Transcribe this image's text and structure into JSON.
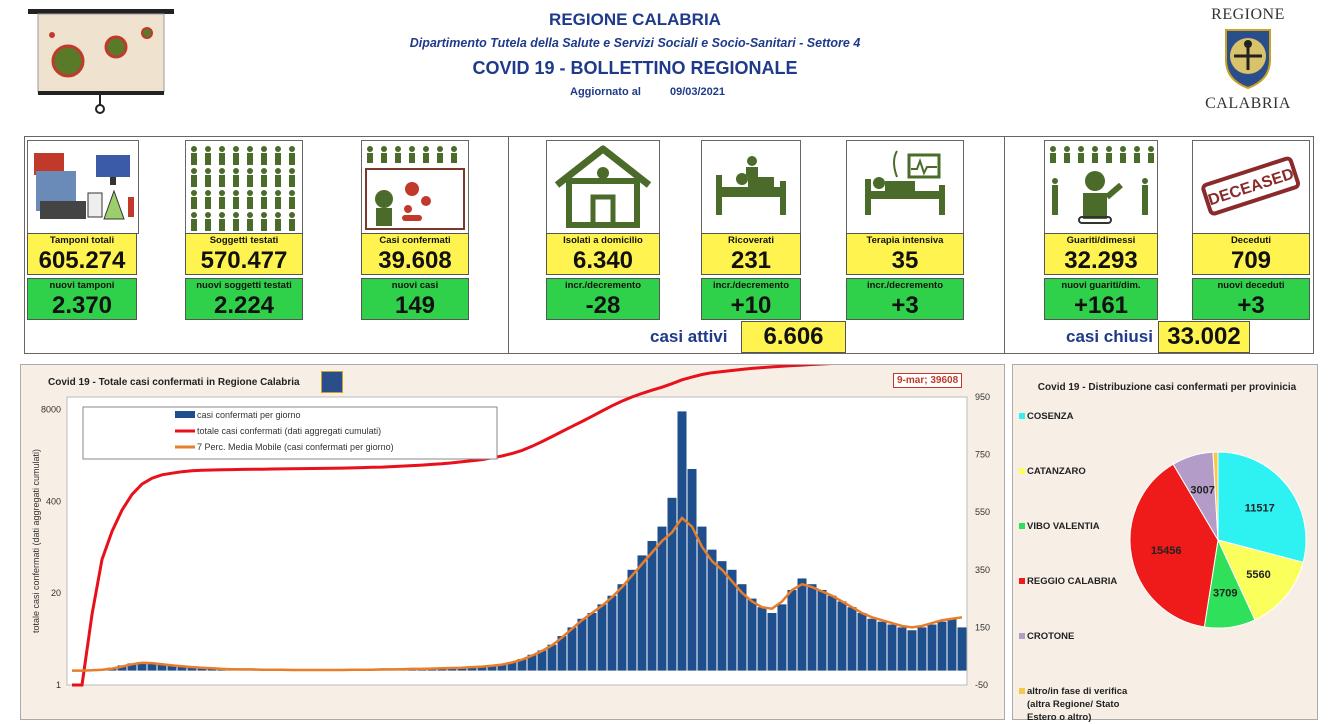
{
  "header": {
    "region": "REGIONE CALABRIA",
    "department": "Dipartimento Tutela della Salute e Servizi Sociali e Socio-Sanitari - Settore 4",
    "bulletin": "COVID 19 - BOLLETTINO REGIONALE",
    "updated_label": "Aggiornato al",
    "updated_date": "09/03/2021",
    "logo_top": "REGIONE",
    "logo_bottom": "CALABRIA"
  },
  "tiles": [
    {
      "label": "Tamponi totali",
      "value": "605.274",
      "sub_label": "nuovi tamponi",
      "sub_value": "2.370",
      "icon": "lab-test-icon"
    },
    {
      "label": "Soggetti testati",
      "value": "570.477",
      "sub_label": "nuovi soggetti testati",
      "sub_value": "2.224",
      "icon": "people-grid-icon"
    },
    {
      "label": "Casi confermati",
      "value": "39.608",
      "sub_label": "nuovi casi",
      "sub_value": "149",
      "icon": "infected-person-icon"
    },
    {
      "label": "Isolati a domicilio",
      "value": "6.340",
      "sub_label": "incr./decremento",
      "sub_value": "-28",
      "icon": "house-icon"
    },
    {
      "label": "Ricoverati",
      "value": "231",
      "sub_label": "incr./decremento",
      "sub_value": "+10",
      "icon": "hospital-bed-icon"
    },
    {
      "label": "Terapia intensiva",
      "value": "35",
      "sub_label": "incr./decremento",
      "sub_value": "+3",
      "icon": "icu-bed-icon"
    },
    {
      "label": "Guariti/dimessi",
      "value": "32.293",
      "sub_label": "nuovi guariti/dim.",
      "sub_value": "+161",
      "icon": "recovered-person-icon"
    },
    {
      "label": "Deceduti",
      "value": "709",
      "sub_label": "nuovi deceduti",
      "sub_value": "+3",
      "icon": "deceased-stamp-icon"
    }
  ],
  "stamp_text": "DECEASED",
  "casi_attivi": {
    "label": "casi attivi",
    "value": "6.606"
  },
  "casi_chiusi": {
    "label": "casi chiusi",
    "value": "33.002"
  },
  "colors": {
    "yellow": "#fff44f",
    "green": "#2fd14a",
    "navy": "#1f3a8a",
    "bar": "#1e4e8c",
    "cumulative": "#e8101a",
    "moving_avg": "#e87d2a"
  },
  "chart_data": [
    {
      "type": "bar",
      "title": "Covid 19 - Totale casi confermati in Regione Calabria",
      "annotation": "9-mar; 39608",
      "ylabel": "totale casi confermati (dati aggregati cumulati)",
      "left_ticks": [
        "8000",
        "400",
        "20",
        "1"
      ],
      "right_ticks": [
        "950",
        "750",
        "550",
        "350",
        "150",
        "-50"
      ],
      "y_scale_left": "log",
      "grid": false,
      "legend_position": "top-left",
      "series": [
        {
          "name": "casi confermati per giorno",
          "type": "bar",
          "values_sampled": [
            0,
            0,
            2,
            5,
            10,
            18,
            25,
            30,
            28,
            22,
            18,
            15,
            12,
            10,
            8,
            6,
            5,
            4,
            4,
            3,
            3,
            3,
            2,
            2,
            2,
            2,
            2,
            2,
            3,
            3,
            3,
            4,
            4,
            5,
            6,
            6,
            7,
            8,
            9,
            10,
            12,
            14,
            18,
            22,
            30,
            40,
            55,
            70,
            90,
            120,
            150,
            180,
            200,
            230,
            260,
            300,
            350,
            400,
            450,
            500,
            600,
            900,
            700,
            500,
            420,
            380,
            350,
            300,
            250,
            220,
            200,
            230,
            280,
            320,
            300,
            280,
            260,
            240,
            220,
            200,
            180,
            170,
            160,
            150,
            140,
            150,
            160,
            170,
            180,
            150
          ]
        },
        {
          "name": "totale casi confermati (dati aggregati cumulati)",
          "type": "line",
          "values_sampled": [
            1,
            1,
            10,
            60,
            150,
            300,
            500,
            700,
            850,
            950,
            1000,
            1050,
            1080,
            1100,
            1110,
            1120,
            1125,
            1130,
            1135,
            1140,
            1145,
            1150,
            1155,
            1160,
            1165,
            1170,
            1175,
            1180,
            1190,
            1200,
            1210,
            1220,
            1240,
            1260,
            1280,
            1300,
            1330,
            1360,
            1400,
            1450,
            1500,
            1560,
            1650,
            1750,
            1900,
            2100,
            2400,
            2800,
            3300,
            3900,
            4600,
            5400,
            6400,
            7600,
            9000,
            10500,
            12000,
            13500,
            15000,
            16500,
            18500,
            21000,
            23000,
            25000,
            26500,
            27500,
            28500,
            29500,
            30500,
            31300,
            32000,
            32700,
            33400,
            34000,
            34600,
            35200,
            35800,
            36300,
            36800,
            37300,
            37700,
            38100,
            38400,
            38700,
            38900,
            39100,
            39300,
            39450,
            39550,
            39608
          ]
        },
        {
          "name": "7 Perc. Media Mobile (casi confermati per giorno)",
          "type": "line",
          "values_sampled": [
            0,
            0,
            1,
            3,
            7,
            14,
            22,
            27,
            26,
            22,
            18,
            15,
            12,
            10,
            8,
            6,
            5,
            4,
            4,
            3,
            3,
            3,
            2,
            2,
            2,
            2,
            2,
            2,
            3,
            3,
            3,
            4,
            4,
            5,
            6,
            6,
            7,
            8,
            9,
            10,
            12,
            14,
            17,
            21,
            28,
            38,
            52,
            68,
            88,
            115,
            145,
            175,
            200,
            225,
            255,
            290,
            330,
            370,
            410,
            450,
            480,
            530,
            500,
            430,
            380,
            350,
            310,
            270,
            240,
            220,
            215,
            240,
            280,
            300,
            290,
            275,
            260,
            240,
            220,
            200,
            185,
            175,
            165,
            155,
            150,
            155,
            165,
            175,
            180,
            185
          ]
        }
      ]
    },
    {
      "type": "pie",
      "title": "Covid 19 - Distribuzione casi confermati per provinicia",
      "categories": [
        "COSENZA",
        "CATANZARO",
        "VIBO VALENTIA",
        "REGGIO CALABRIA",
        "CROTONE",
        "altro/in fase di verifica (altra Regione/ Stato Estero o altro)"
      ],
      "values": [
        11517,
        5560,
        3709,
        15456,
        3007,
        359
      ],
      "colors": [
        "#2ef2f2",
        "#fbff5c",
        "#2ee05a",
        "#ef1a1a",
        "#b49cc8",
        "#f7c84a"
      ]
    }
  ]
}
